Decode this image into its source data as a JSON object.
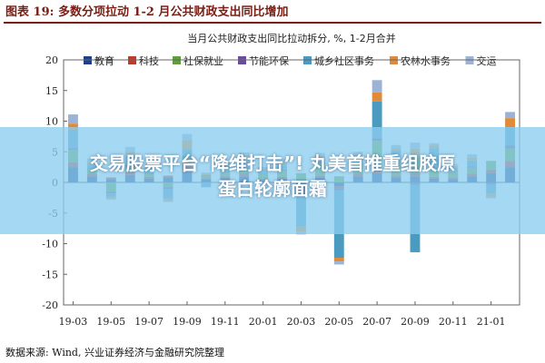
{
  "figure": {
    "label": "图表 19: 多数分项拉动 1-2 月公共财政支出同比增加",
    "source": "数据来源: Wind, 兴业证券经济与金融研究院整理"
  },
  "overlay": {
    "line1": "交易股票平台“降维打击”! 丸美首推重组胶原",
    "line2": "蛋白轮廓面霜",
    "background": "#8ccdee"
  },
  "chart_data": {
    "type": "bar",
    "stacked": true,
    "title": "当月公共财政支出同比拉动拆分, %, 1-2月合并",
    "xlabel": "",
    "ylabel": "",
    "ylim": [
      -20,
      20
    ],
    "yticks": [
      20,
      15,
      10,
      5,
      0,
      -5,
      -10,
      -15,
      -20
    ],
    "grid": false,
    "legend_position": "top",
    "x_tick_labels": [
      "19-03",
      "19-05",
      "19-07",
      "19-09",
      "19-11",
      "20-01",
      "20-03",
      "20-05",
      "20-07",
      "20-09",
      "20-11",
      "21-01"
    ],
    "categories": [
      "19-03",
      "19-04",
      "19-05",
      "19-06",
      "19-07",
      "19-08",
      "19-09",
      "19-10",
      "19-11",
      "19-12",
      "20-01",
      "20-02",
      "20-03",
      "20-04",
      "20-05",
      "20-06",
      "20-07",
      "20-08",
      "20-09",
      "20-10",
      "20-11",
      "20-12",
      "21-01",
      "21-02"
    ],
    "series": [
      {
        "name": "教育",
        "color": "#1f3f8c",
        "values": [
          2.5,
          1.0,
          0.5,
          1.2,
          0.6,
          0.8,
          1.8,
          0.5,
          0.7,
          1.0,
          0.4,
          0.6,
          -1.0,
          0.8,
          -0.6,
          1.0,
          1.5,
          0.8,
          1.0,
          0.6,
          0.5,
          1.0,
          1.5,
          2.5
        ]
      },
      {
        "name": "科技",
        "color": "#c0392b",
        "values": [
          0.8,
          0.4,
          0.3,
          0.6,
          0.3,
          0.3,
          1.2,
          0.2,
          0.3,
          0.5,
          0.2,
          0.3,
          -0.6,
          0.3,
          -0.4,
          0.4,
          0.8,
          0.3,
          0.5,
          0.3,
          0.3,
          0.4,
          0.5,
          1.0
        ]
      },
      {
        "name": "社保就业",
        "color": "#5e9e3c",
        "values": [
          2.0,
          0.8,
          -1.5,
          0.8,
          0.5,
          -0.8,
          1.0,
          0.4,
          0.6,
          0.8,
          0.8,
          1.0,
          1.5,
          2.0,
          1.0,
          1.5,
          4.5,
          2.0,
          2.5,
          1.5,
          1.0,
          1.0,
          1.5,
          2.0
        ]
      },
      {
        "name": "节能环保",
        "color": "#6a4c9c",
        "values": [
          0.3,
          0.1,
          -0.3,
          0.3,
          0.1,
          -0.3,
          0.4,
          0.1,
          0.2,
          0.2,
          0.1,
          0.2,
          -0.6,
          0.3,
          -0.3,
          0.2,
          0.4,
          0.1,
          -0.4,
          0.2,
          0.1,
          0.2,
          -0.3,
          0.5
        ]
      },
      {
        "name": "城乡社区事务",
        "color": "#4a9bbf",
        "values": [
          3.0,
          0.5,
          -0.5,
          1.5,
          0.8,
          -1.5,
          1.0,
          -0.8,
          0.8,
          1.0,
          0.5,
          0.8,
          -5.0,
          0.5,
          -11.0,
          0.8,
          6.0,
          2.0,
          -11.0,
          3.0,
          0.5,
          1.0,
          -1.5,
          3.0
        ]
      },
      {
        "name": "农林水事务",
        "color": "#e08a3a",
        "values": [
          1.0,
          0.5,
          -0.3,
          0.6,
          0.3,
          -0.3,
          1.5,
          0.2,
          0.3,
          0.8,
          0.2,
          0.5,
          -0.8,
          0.5,
          -0.6,
          0.6,
          1.5,
          0.4,
          1.5,
          0.4,
          0.3,
          0.5,
          -0.5,
          1.5
        ]
      },
      {
        "name": "交运",
        "color": "#9db3d6",
        "values": [
          1.5,
          0.6,
          -0.2,
          0.8,
          0.3,
          -0.3,
          1.0,
          0.2,
          0.4,
          0.6,
          0.3,
          0.4,
          -0.5,
          0.4,
          -0.5,
          0.5,
          2.0,
          0.5,
          1.0,
          0.4,
          0.3,
          0.5,
          -0.3,
          1.0
        ]
      }
    ]
  }
}
